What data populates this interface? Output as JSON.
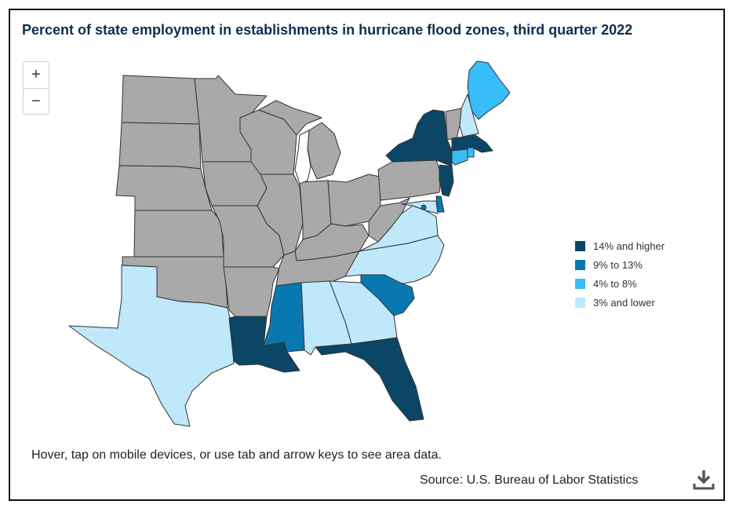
{
  "title": "Percent of state employment in establishments in hurricane flood zones, third quarter 2022",
  "zoom": {
    "in_label": "+",
    "out_label": "−"
  },
  "legend": [
    {
      "label": "14% and higher",
      "color": "#0b4666"
    },
    {
      "label": "9% to 13%",
      "color": "#0a78b0"
    },
    {
      "label": "4% to 8%",
      "color": "#38bdf8"
    },
    {
      "label": "3% and lower",
      "color": "#bfe8fb"
    }
  ],
  "no_data_color": "#a9a9a9",
  "map_data": {
    "categories": {
      "14% and higher": [
        "New York",
        "New Jersey",
        "Massachusetts",
        "Louisiana",
        "Florida"
      ],
      "9% to 13%": [
        "South Carolina",
        "Mississippi",
        "Delaware",
        "District of Columbia"
      ],
      "4% to 8%": [
        "Maine",
        "Connecticut",
        "Rhode Island"
      ],
      "3% and lower": [
        "New Hampshire",
        "Maryland",
        "Virginia",
        "North Carolina",
        "Georgia",
        "Alabama",
        "Texas"
      ]
    }
  },
  "instructions": "Hover, tap on mobile devices, or use tab and arrow keys to see area data.",
  "source": "Source: U.S. Bureau of Labor Statistics",
  "download_icon": "download-icon"
}
